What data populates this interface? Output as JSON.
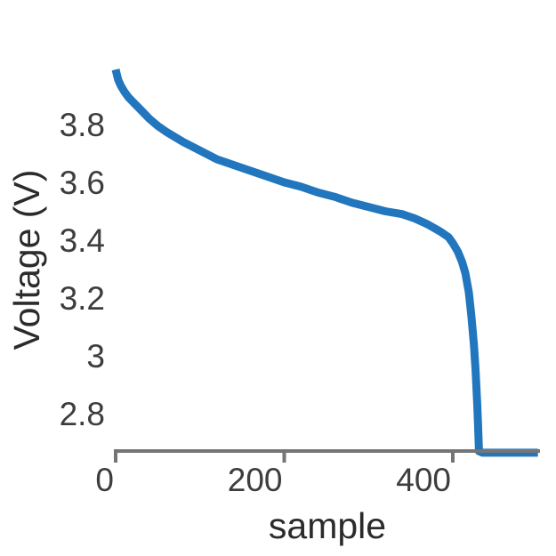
{
  "figure": {
    "background_color": "#ffffff",
    "line_color": "#2176bd",
    "axis_color": "#757575",
    "tick_label_color": "#3d3d3d",
    "axis_title_color": "#2b2b2b"
  },
  "chart_data": {
    "type": "line",
    "title": "",
    "xlabel": "sample",
    "ylabel": "Voltage (V)",
    "grid": false,
    "legend": null,
    "xlim": [
      0,
      503
    ],
    "ylim": [
      2.6,
      4.05
    ],
    "x_ticks": {
      "values": [
        0,
        200,
        400
      ],
      "labels": [
        "0",
        "200",
        "400"
      ]
    },
    "y_ticks": {
      "values": [
        3.8,
        3.6,
        3.4,
        3.2,
        3.0,
        2.8
      ],
      "labels": [
        "3.8",
        "3.6",
        "3.4",
        "3.2",
        "3",
        "2.8"
      ]
    },
    "series": [
      {
        "name": "voltage",
        "x": [
          0,
          3,
          6,
          10,
          15,
          20,
          30,
          40,
          50,
          60,
          80,
          100,
          120,
          140,
          160,
          180,
          200,
          220,
          240,
          260,
          280,
          300,
          320,
          340,
          355,
          370,
          385,
          395,
          400,
          406,
          411,
          415,
          419,
          422,
          425,
          427,
          429,
          430,
          431,
          435,
          450,
          470,
          490,
          501
        ],
        "y": [
          3.99,
          3.955,
          3.935,
          3.915,
          3.895,
          3.88,
          3.85,
          3.82,
          3.795,
          3.775,
          3.74,
          3.71,
          3.68,
          3.66,
          3.64,
          3.62,
          3.6,
          3.585,
          3.565,
          3.55,
          3.53,
          3.515,
          3.5,
          3.49,
          3.475,
          3.455,
          3.43,
          3.41,
          3.39,
          3.36,
          3.325,
          3.285,
          3.22,
          3.14,
          3.04,
          2.95,
          2.83,
          2.76,
          2.67,
          2.665,
          2.665,
          2.665,
          2.665,
          2.665
        ]
      }
    ]
  }
}
